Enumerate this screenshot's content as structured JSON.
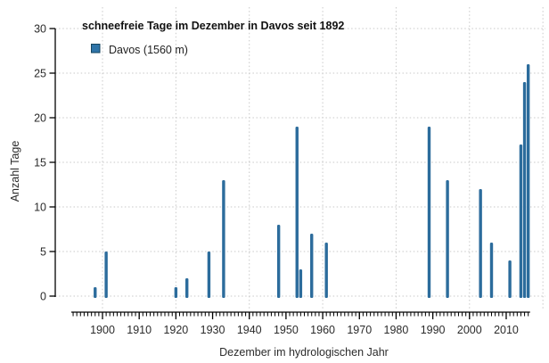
{
  "chart_data": {
    "type": "bar",
    "title": "schneefreie Tage im Dezember in Davos seit 1892",
    "legend": {
      "label": "Davos (1560 m)",
      "marker_fill": "#2f74a8",
      "marker_stroke": "#16455f"
    },
    "xlabel": "Dezember im hydrologischen Jahr",
    "ylabel": "Anzahl Tage",
    "ylim": [
      0,
      30
    ],
    "y_ticks": [
      0,
      5,
      10,
      15,
      20,
      25,
      30
    ],
    "x_major_ticks": [
      1900,
      1910,
      1920,
      1930,
      1940,
      1950,
      1960,
      1970,
      1980,
      1990,
      2000,
      2010
    ],
    "x_minor_ticks": {
      "from": 1892,
      "to": 2016,
      "step": 1
    },
    "x_axis_span_years": [
      1891.5,
      2016.5
    ],
    "x_grid_years": [
      1900,
      1920,
      1940,
      1960,
      1980,
      2000,
      2020
    ],
    "grid_style": "dotted",
    "points": [
      {
        "year": 1898,
        "value": 1
      },
      {
        "year": 1901,
        "value": 5
      },
      {
        "year": 1920,
        "value": 1
      },
      {
        "year": 1923,
        "value": 2
      },
      {
        "year": 1929,
        "value": 5
      },
      {
        "year": 1933,
        "value": 13
      },
      {
        "year": 1948,
        "value": 8
      },
      {
        "year": 1953,
        "value": 19
      },
      {
        "year": 1954,
        "value": 3
      },
      {
        "year": 1957,
        "value": 7
      },
      {
        "year": 1961,
        "value": 6
      },
      {
        "year": 1989,
        "value": 19
      },
      {
        "year": 1994,
        "value": 13
      },
      {
        "year": 2003,
        "value": 12
      },
      {
        "year": 2006,
        "value": 6
      },
      {
        "year": 2011,
        "value": 4
      },
      {
        "year": 2014,
        "value": 17
      },
      {
        "year": 2015,
        "value": 24
      },
      {
        "year": 2016,
        "value": 26
      }
    ]
  },
  "colors": {
    "bar": "#2c6c9c",
    "grid": "#c9c9c9",
    "axis": "#000000",
    "background": "#ffffff"
  }
}
